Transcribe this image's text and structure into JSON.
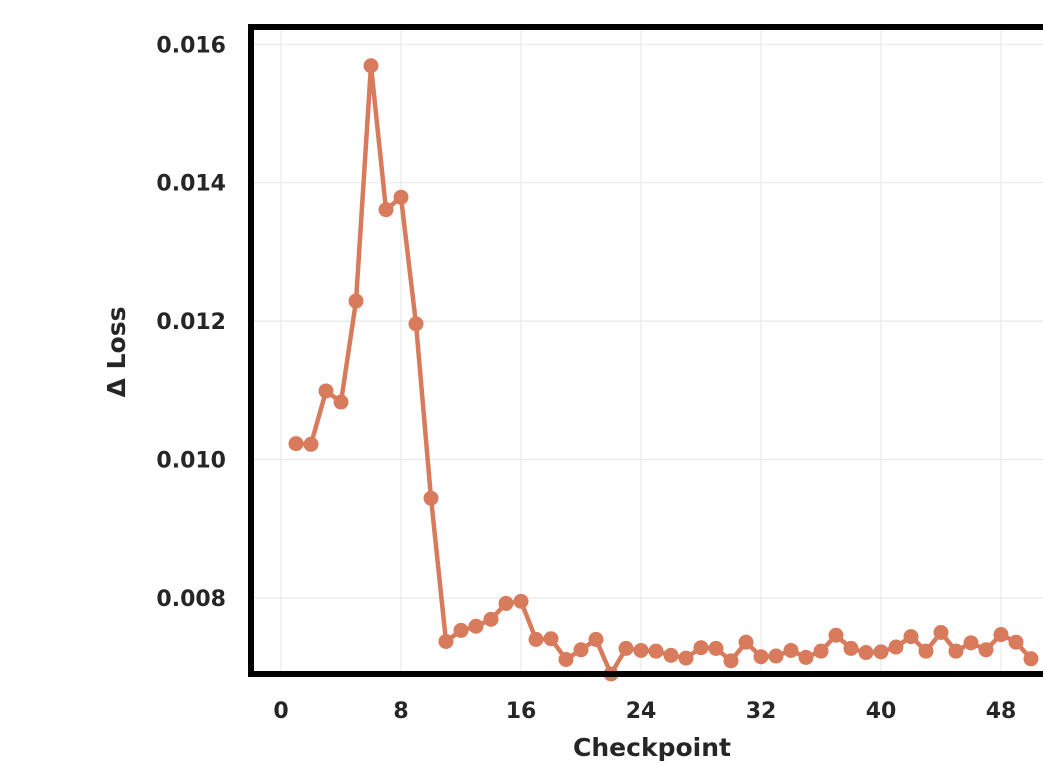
{
  "chart_data": {
    "type": "line",
    "title": "",
    "xlabel": "Checkpoint",
    "ylabel": "Δ Loss",
    "xlim": [
      -2,
      52
    ],
    "ylim": [
      0.0069,
      0.01625
    ],
    "x_ticks": [
      0,
      8,
      16,
      24,
      32,
      40,
      48
    ],
    "y_ticks": [
      0.008,
      0.01,
      0.012,
      0.014,
      0.016
    ],
    "x_tick_labels": [
      "0",
      "8",
      "16",
      "24",
      "32",
      "40",
      "48"
    ],
    "y_tick_labels": [
      "0.008",
      "0.010",
      "0.012",
      "0.014",
      "0.016"
    ],
    "grid": true,
    "color": "#d87a5c",
    "series": [
      {
        "x": [
          1,
          2,
          3,
          4,
          5,
          6,
          7,
          8,
          9,
          10,
          11,
          12,
          13,
          14,
          15,
          16,
          17,
          18,
          19,
          20,
          21,
          22,
          23,
          24,
          25,
          26,
          27,
          28,
          29,
          30,
          31,
          32,
          33,
          34,
          35,
          36,
          37,
          38,
          39,
          40,
          41,
          42,
          43,
          44,
          45,
          46,
          47,
          48,
          49,
          50
        ],
        "values": [
          0.01023,
          0.01022,
          0.01099,
          0.01083,
          0.01229,
          0.01569,
          0.01361,
          0.01379,
          0.01196,
          0.00944,
          0.00737,
          0.00753,
          0.00759,
          0.00769,
          0.00792,
          0.00795,
          0.0074,
          0.00741,
          0.00711,
          0.00725,
          0.0074,
          0.0069,
          0.00727,
          0.00724,
          0.00723,
          0.00717,
          0.00713,
          0.00728,
          0.00727,
          0.00709,
          0.00736,
          0.00715,
          0.00716,
          0.00724,
          0.00714,
          0.00723,
          0.00746,
          0.00727,
          0.00721,
          0.00722,
          0.00729,
          0.00744,
          0.00723,
          0.0075,
          0.00723,
          0.00735,
          0.00725,
          0.00747,
          0.00736,
          0.00712
        ]
      }
    ]
  }
}
